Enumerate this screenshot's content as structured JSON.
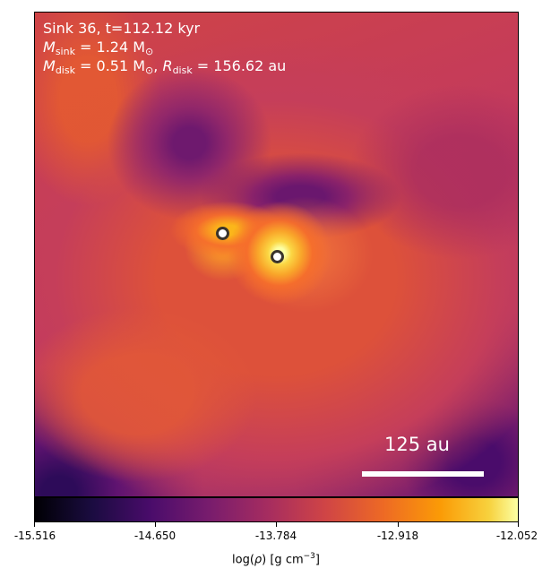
{
  "annotation": {
    "title": "Sink 36, t=112.12 kyr",
    "sink_mass_symbol": "M",
    "sink_mass_subscript": "sink",
    "sink_mass_value": " = 1.24 M",
    "sink_mass_unit_subscript": "⊙",
    "disk_mass_symbol": "M",
    "disk_mass_subscript": "disk",
    "disk_mass_value": " = 0.51 M",
    "disk_mass_unit_subscript": "⊙",
    "disk_radius_separator": ", ",
    "disk_radius_symbol": "R",
    "disk_radius_subscript": "disk",
    "disk_radius_value": " = 156.62 au"
  },
  "scalebar": {
    "label": "125 au",
    "length_au": 125,
    "color": "#ffffff"
  },
  "sinks": {
    "count": 2,
    "marker_fill": "#ffffff",
    "marker_edge": "#3a342c"
  },
  "colorbar": {
    "colormap": "inferno",
    "ticks": [
      "-15.516",
      "-14.650",
      "-13.784",
      "-12.918",
      "-12.052"
    ],
    "label_prefix": "log(",
    "label_rho": "ρ",
    "label_mid": ") [g cm",
    "label_exp": "−3",
    "label_suffix": "]"
  }
}
